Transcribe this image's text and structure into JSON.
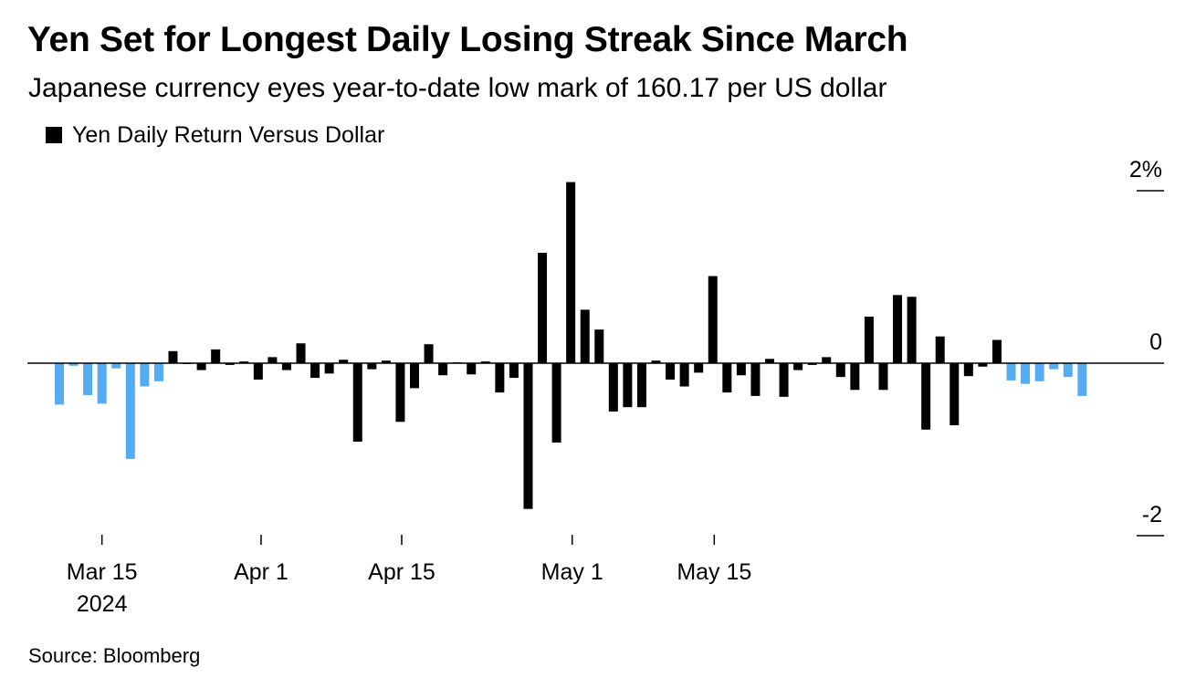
{
  "title": "Yen Set for Longest Daily Losing Streak Since March",
  "subtitle": "Japanese currency eyes year-to-date low mark of 160.17 per US dollar",
  "source": "Source: Bloomberg",
  "colors": {
    "primary_bar": "#000000",
    "streak_bar": "#55acf2",
    "axis": "#000000"
  },
  "chart_data": {
    "type": "bar",
    "series": [
      {
        "name": "Yen Daily Return Versus Dollar",
        "color": "#000000"
      }
    ],
    "x_ticks": [
      {
        "label": "Mar 15",
        "sublabel": "2024",
        "index": 3.0
      },
      {
        "label": "Apr 1",
        "sublabel": "",
        "index": 14.2
      },
      {
        "label": "Apr 15",
        "sublabel": "",
        "index": 24.1
      },
      {
        "label": "May 1",
        "sublabel": "",
        "index": 36.1
      },
      {
        "label": "May 15",
        "sublabel": "",
        "index": 46.1
      }
    ],
    "y_ticks": [
      {
        "value": 2,
        "label": "2%"
      },
      {
        "value": 0,
        "label": "0"
      },
      {
        "value": -2,
        "label": "-2"
      }
    ],
    "ylim": [
      -2.0,
      2.0
    ],
    "values": [
      -0.48,
      -0.03,
      -0.37,
      -0.47,
      -0.06,
      -1.11,
      -0.27,
      -0.21,
      0.14,
      -0.01,
      -0.08,
      0.16,
      -0.02,
      0.02,
      -0.19,
      0.07,
      -0.08,
      0.23,
      -0.17,
      -0.12,
      0.04,
      -0.91,
      -0.07,
      0.03,
      -0.68,
      -0.29,
      0.22,
      -0.14,
      0.01,
      -0.13,
      0.02,
      -0.34,
      -0.17,
      -1.69,
      1.28,
      -0.92,
      2.1,
      0.62,
      0.39,
      -0.56,
      -0.51,
      -0.51,
      0.03,
      -0.19,
      -0.27,
      -0.11,
      1.01,
      -0.34,
      -0.14,
      -0.38,
      0.05,
      -0.39,
      -0.08,
      -0.02,
      0.07,
      -0.16,
      -0.31,
      0.54,
      -0.31,
      0.79,
      0.77,
      -0.77,
      0.31,
      -0.72,
      -0.15,
      -0.04,
      0.27,
      -0.2,
      -0.24,
      -0.21,
      -0.07,
      -0.16,
      -0.38
    ],
    "highlight_indices": [
      0,
      1,
      2,
      3,
      4,
      5,
      6,
      7,
      67,
      68,
      69,
      70,
      71,
      72
    ]
  }
}
